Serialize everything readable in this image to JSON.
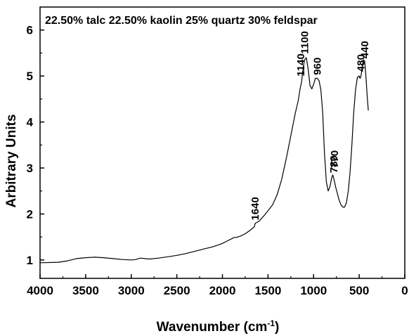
{
  "chart_data": {
    "type": "line",
    "title": "22.50% talc  22.50% kaolin 25% quartz 30% feldspar",
    "xlabel": "Wavenumber (cm",
    "xlabel_sup": "-1",
    "xlabel_close": ")",
    "ylabel": "Arbitrary Units",
    "xlim": [
      4000,
      0
    ],
    "ylim": [
      0.6,
      6.5
    ],
    "xticks": [
      4000,
      3500,
      3000,
      2500,
      2000,
      1500,
      1000,
      500,
      0
    ],
    "yticks": [
      1,
      2,
      3,
      4,
      5,
      6
    ],
    "grid": false,
    "series": [
      {
        "color": "#000000",
        "x": [
          4000,
          3800,
          3700,
          3600,
          3500,
          3400,
          3300,
          3200,
          3100,
          3000,
          2950,
          2920,
          2900,
          2850,
          2800,
          2700,
          2600,
          2500,
          2400,
          2300,
          2200,
          2100,
          2000,
          1950,
          1900,
          1870,
          1850,
          1800,
          1750,
          1700,
          1650,
          1640,
          1600,
          1550,
          1500,
          1450,
          1400,
          1350,
          1300,
          1250,
          1200,
          1170,
          1150,
          1130,
          1120,
          1100,
          1080,
          1060,
          1040,
          1020,
          1000,
          980,
          960,
          940,
          920,
          900,
          880,
          860,
          840,
          820,
          800,
          790,
          780,
          770,
          760,
          740,
          720,
          700,
          680,
          660,
          640,
          620,
          600,
          580,
          560,
          540,
          520,
          500,
          490,
          480,
          470,
          460,
          450,
          440,
          430,
          420,
          410,
          400
        ],
        "y": [
          0.94,
          0.95,
          0.98,
          1.03,
          1.05,
          1.06,
          1.05,
          1.03,
          1.01,
          1.0,
          1.01,
          1.03,
          1.04,
          1.03,
          1.02,
          1.04,
          1.07,
          1.1,
          1.14,
          1.19,
          1.24,
          1.29,
          1.36,
          1.41,
          1.46,
          1.49,
          1.49,
          1.52,
          1.57,
          1.64,
          1.72,
          1.8,
          1.84,
          1.95,
          2.07,
          2.2,
          2.42,
          2.75,
          3.2,
          3.7,
          4.2,
          4.45,
          4.7,
          4.9,
          5.1,
          5.35,
          5.4,
          5.15,
          4.8,
          4.72,
          4.82,
          4.95,
          4.95,
          4.9,
          4.7,
          4.2,
          3.3,
          2.7,
          2.5,
          2.6,
          2.8,
          2.85,
          2.78,
          2.7,
          2.6,
          2.45,
          2.3,
          2.2,
          2.15,
          2.15,
          2.25,
          2.5,
          2.9,
          3.5,
          4.2,
          4.7,
          4.97,
          5.0,
          4.95,
          5.0,
          5.15,
          5.3,
          5.35,
          5.32,
          5.1,
          4.8,
          4.5,
          4.25
        ]
      }
    ],
    "annotations": [
      {
        "text": "1640",
        "x": 1640,
        "y": 1.8
      },
      {
        "text": "1100",
        "x": 1100,
        "y": 5.45
      },
      {
        "text": "1140",
        "x": 1140,
        "y": 4.9
      },
      {
        "text": "960",
        "x": 960,
        "y": 4.9
      },
      {
        "text": "780",
        "x": 780,
        "y": 2.8
      },
      {
        "text": "770",
        "x": 770,
        "y": 2.85
      },
      {
        "text": "480",
        "x": 480,
        "y": 5.0
      },
      {
        "text": "440",
        "x": 440,
        "y": 5.35
      }
    ]
  }
}
